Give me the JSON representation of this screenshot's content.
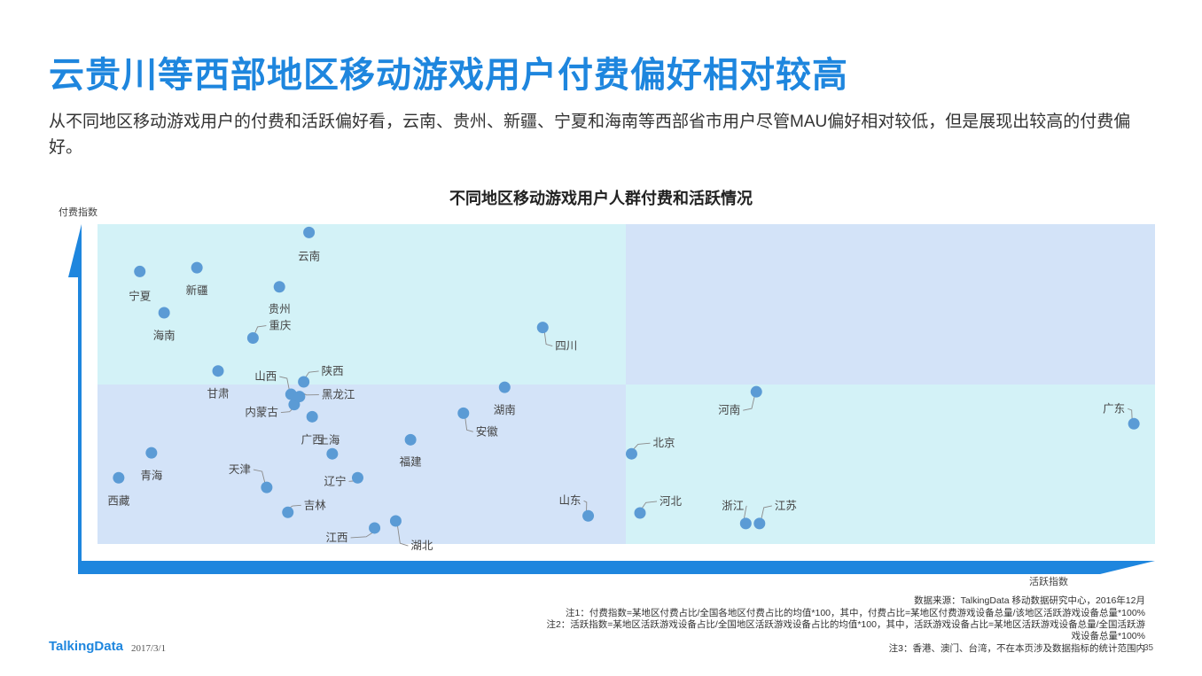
{
  "page": {
    "title": "云贵川等西部地区移动游戏用户付费偏好相对较高",
    "subtitle": "从不同地区移动游戏用户的付费和活跃偏好看，云南、贵州、新疆、宁夏和海南等西部省市用户尽管MAU偏好相对较低，但是展现出较高的付费偏好。"
  },
  "chart_data": {
    "type": "scatter",
    "title": "不同地区移动游戏用户人群付费和活跃情况",
    "xlabel": "活跃指数",
    "ylabel": "付费指数",
    "quadrant_colors": {
      "top_left": "#d3f2f7",
      "top_right": "#d3e3f8",
      "bottom_left": "#d3e3f8",
      "bottom_right": "#d3f2f7"
    },
    "point_color": "#5b9bd5",
    "axis_color": "#1e86de",
    "grid": false,
    "legend": "none",
    "points": [
      {
        "label": "云南",
        "x": 20.0,
        "y": 97.4
      },
      {
        "label": "宁夏",
        "x": 4.0,
        "y": 85.2
      },
      {
        "label": "新疆",
        "x": 9.4,
        "y": 86.4
      },
      {
        "label": "贵州",
        "x": 17.2,
        "y": 80.4
      },
      {
        "label": "海南",
        "x": 6.3,
        "y": 72.3
      },
      {
        "label": "重庆",
        "x": 14.7,
        "y": 64.4
      },
      {
        "label": "四川",
        "x": 42.1,
        "y": 67.7
      },
      {
        "label": "甘肃",
        "x": 11.4,
        "y": 54.1
      },
      {
        "label": "陕西",
        "x": 19.5,
        "y": 50.7
      },
      {
        "label": "山西",
        "x": 18.3,
        "y": 46.8
      },
      {
        "label": "内蒙古",
        "x": 18.6,
        "y": 43.6
      },
      {
        "label": "黑龙江",
        "x": 19.1,
        "y": 46.1
      },
      {
        "label": "湖南",
        "x": 38.5,
        "y": 49.0
      },
      {
        "label": "河南",
        "x": 62.3,
        "y": 47.6
      },
      {
        "label": "广东",
        "x": 98.0,
        "y": 37.6
      },
      {
        "label": "广西",
        "x": 20.3,
        "y": 39.8
      },
      {
        "label": "安徽",
        "x": 34.6,
        "y": 40.9
      },
      {
        "label": "北京",
        "x": 50.5,
        "y": 28.2
      },
      {
        "label": "福建",
        "x": 29.6,
        "y": 32.6
      },
      {
        "label": "上海",
        "x": 22.2,
        "y": 28.2
      },
      {
        "label": "青海",
        "x": 5.1,
        "y": 28.5
      },
      {
        "label": "西藏",
        "x": 2.0,
        "y": 20.7
      },
      {
        "label": "天津",
        "x": 16.0,
        "y": 17.7
      },
      {
        "label": "辽宁",
        "x": 24.6,
        "y": 20.7
      },
      {
        "label": "吉林",
        "x": 18.0,
        "y": 9.9
      },
      {
        "label": "山东",
        "x": 46.4,
        "y": 8.8
      },
      {
        "label": "河北",
        "x": 51.3,
        "y": 9.7
      },
      {
        "label": "浙江",
        "x": 61.3,
        "y": 6.4
      },
      {
        "label": "江苏",
        "x": 62.6,
        "y": 6.4
      },
      {
        "label": "江西",
        "x": 26.2,
        "y": 5.0
      },
      {
        "label": "湖北",
        "x": 28.2,
        "y": 7.2
      }
    ]
  },
  "footer": {
    "source": "数据来源：TalkingData 移动数据研究中心，2016年12月",
    "note1": "注1：付费指数=某地区付费占比/全国各地区付费占比的均值*100，其中，付费占比=某地区付费游戏设备总量/该地区活跃游戏设备总量*100%",
    "note2_line1": "注2：活跃指数=某地区活跃游戏设备占比/全国地区活跃游戏设备占比的均值*100，其中，活跃游戏设备占比=某地区活跃游戏设备总量/全国活跃游",
    "note2_line2": "戏设备总量*100%",
    "note3": "注3：香港、澳门、台湾，不在本页涉及数据指标的统计范围内",
    "logo": "TalkingData",
    "date": "2017/3/1",
    "page_number": "35"
  }
}
